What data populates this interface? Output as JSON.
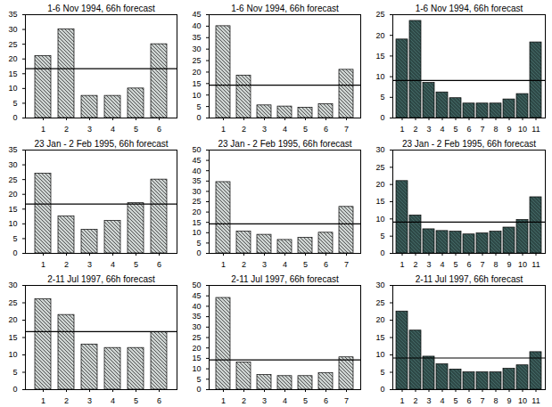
{
  "chart_data": [
    {
      "type": "bar",
      "title": "1-6 Nov 1994, 66h forecast",
      "categories": [
        1,
        2,
        3,
        4,
        5,
        6
      ],
      "values": [
        21,
        30,
        7.5,
        7.5,
        10,
        25
      ],
      "reference_line": 16.7,
      "color": "#cdd3d1",
      "ylim": [
        0,
        35
      ],
      "yticks": [
        0,
        5,
        10,
        15,
        20,
        25,
        30,
        35
      ]
    },
    {
      "type": "bar",
      "title": "1-6 Nov 1994, 66h forecast",
      "categories": [
        1,
        2,
        3,
        4,
        5,
        6,
        7
      ],
      "values": [
        40,
        18.5,
        5.5,
        5,
        4.5,
        6,
        21
      ],
      "reference_line": 14.3,
      "color": "#cdd3d1",
      "ylim": [
        0,
        45
      ],
      "yticks": [
        0,
        5,
        10,
        15,
        20,
        25,
        30,
        35,
        40,
        45
      ]
    },
    {
      "type": "bar",
      "title": "1-6 Nov 1994, 66h forecast",
      "categories": [
        1,
        2,
        3,
        4,
        5,
        6,
        7,
        8,
        9,
        10,
        11
      ],
      "values": [
        19,
        23.5,
        8.5,
        6.2,
        4.8,
        3.5,
        3.5,
        3.5,
        4.5,
        5.8,
        18.3
      ],
      "reference_line": 9.1,
      "color": "#2f4a48",
      "ylim": [
        0,
        25
      ],
      "yticks": [
        0,
        5,
        10,
        15,
        20,
        25
      ]
    },
    {
      "type": "bar",
      "title": "23 Jan - 2 Feb 1995, 66h forecast",
      "categories": [
        1,
        2,
        3,
        4,
        5,
        6
      ],
      "values": [
        27,
        12.5,
        8,
        11,
        17,
        25
      ],
      "reference_line": 16.7,
      "color": "#cdd3d1",
      "ylim": [
        0,
        35
      ],
      "yticks": [
        0,
        5,
        10,
        15,
        20,
        25,
        30,
        35
      ]
    },
    {
      "type": "bar",
      "title": "23 Jan - 2 Feb 1995, 66h forecast",
      "categories": [
        1,
        2,
        3,
        4,
        5,
        6,
        7
      ],
      "values": [
        34.5,
        10.5,
        9,
        6.5,
        7.5,
        10,
        22.5
      ],
      "reference_line": 14.3,
      "color": "#cdd3d1",
      "ylim": [
        0,
        50
      ],
      "yticks": [
        0,
        5,
        10,
        15,
        20,
        25,
        30,
        35,
        40,
        45,
        50
      ]
    },
    {
      "type": "bar",
      "title": "23 Jan - 2 Feb 1995, 66h forecast",
      "categories": [
        1,
        2,
        3,
        4,
        5,
        6,
        7,
        8,
        9,
        10,
        11
      ],
      "values": [
        21,
        11,
        7,
        6.5,
        6.3,
        5.5,
        5.8,
        6.3,
        7.5,
        9.7,
        16.3
      ],
      "reference_line": 9.1,
      "color": "#2f4a48",
      "ylim": [
        0,
        30
      ],
      "yticks": [
        0,
        5,
        10,
        15,
        20,
        25,
        30
      ]
    },
    {
      "type": "bar",
      "title": "2-11 Jul 1997, 66h forecast",
      "categories": [
        1,
        2,
        3,
        4,
        5,
        6
      ],
      "values": [
        26,
        21.5,
        13,
        12,
        12,
        16.5
      ],
      "reference_line": 16.7,
      "color": "#cdd3d1",
      "ylim": [
        0,
        30
      ],
      "yticks": [
        0,
        5,
        10,
        15,
        20,
        25,
        30
      ]
    },
    {
      "type": "bar",
      "title": "2-11 Jul 1997, 66h forecast",
      "categories": [
        1,
        2,
        3,
        4,
        5,
        6,
        7
      ],
      "values": [
        44,
        13,
        7,
        6.5,
        6.5,
        8,
        15.5
      ],
      "reference_line": 14.3,
      "color": "#cdd3d1",
      "ylim": [
        0,
        50
      ],
      "yticks": [
        0,
        5,
        10,
        15,
        20,
        25,
        30,
        35,
        40,
        45,
        50
      ]
    },
    {
      "type": "bar",
      "title": "2-11 Jul 1997, 66h forecast",
      "categories": [
        1,
        2,
        3,
        4,
        5,
        6,
        7,
        8,
        9,
        10,
        11
      ],
      "values": [
        22.5,
        17,
        9.5,
        7.3,
        5.8,
        5,
        5,
        5,
        6,
        7,
        10.8
      ],
      "reference_line": 9.1,
      "color": "#2f4a48",
      "ylim": [
        0,
        30
      ],
      "yticks": [
        0,
        5,
        10,
        15,
        20,
        25,
        30
      ]
    }
  ]
}
